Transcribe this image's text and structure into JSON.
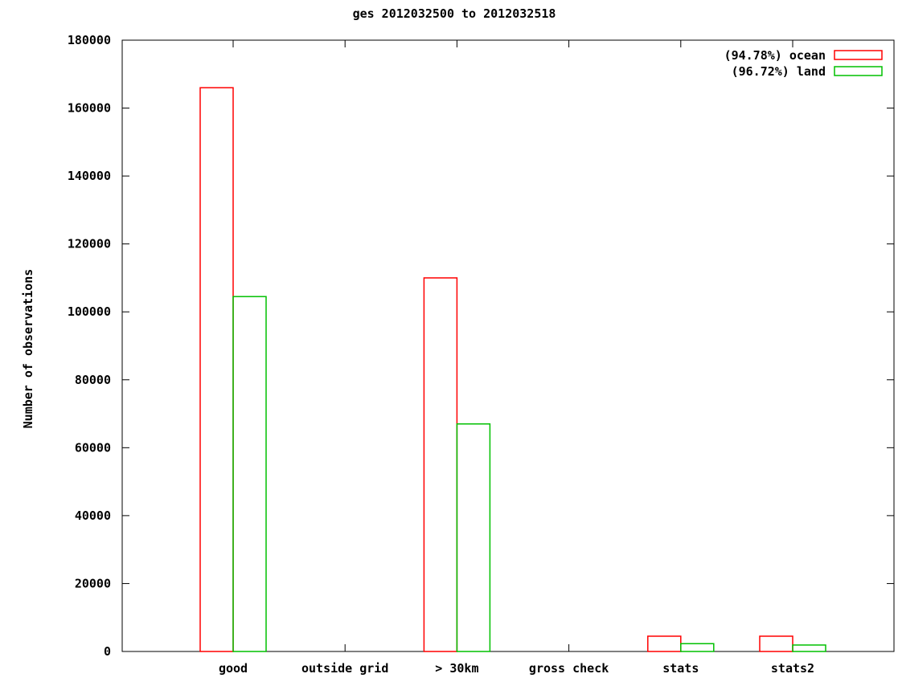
{
  "chart_data": {
    "type": "bar",
    "title": "ges 2012032500 to 2012032518",
    "xlabel": "",
    "ylabel": "Number of observations",
    "ylim": [
      0,
      180000
    ],
    "yticks": [
      0,
      20000,
      40000,
      60000,
      80000,
      100000,
      120000,
      140000,
      160000,
      180000
    ],
    "categories": [
      "good",
      "outside grid",
      "> 30km",
      "gross check",
      "stats",
      "stats2"
    ],
    "series": [
      {
        "name": "(94.78%) ocean",
        "color": "#ff0000",
        "values": [
          166000,
          0,
          110000,
          0,
          4500,
          4500
        ]
      },
      {
        "name": "(96.72%) land",
        "color": "#00c000",
        "values": [
          104500,
          0,
          67000,
          0,
          2300,
          1900
        ]
      }
    ],
    "legend_position": "top-right",
    "grid": false
  }
}
